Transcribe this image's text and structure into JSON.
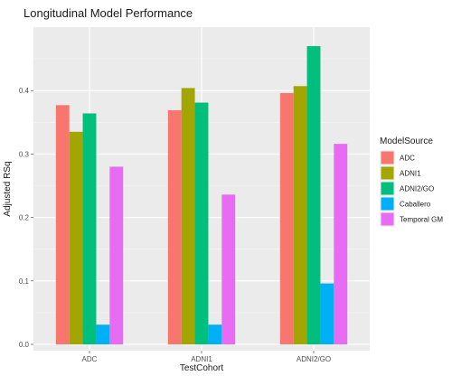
{
  "chart_data": {
    "type": "bar",
    "title": "Longitudinal Model Performance",
    "xlabel": "TestCohort",
    "ylabel": "Adjusted RSq",
    "categories": [
      "ADC",
      "ADNI1",
      "ADNI2/GO"
    ],
    "ylim": [
      -0.01,
      0.5
    ],
    "yticks": [
      0.0,
      0.1,
      0.2,
      0.3,
      0.4
    ],
    "ytick_labels": [
      "0.0",
      "0.1",
      "0.2",
      "0.3",
      "0.4"
    ],
    "grid": true,
    "legend_title": "ModelSource",
    "legend_position": "right",
    "series": [
      {
        "name": "ADC",
        "color": "#F8766D",
        "values": [
          0.377,
          0.369,
          0.396
        ]
      },
      {
        "name": "ADNI1",
        "color": "#A3A500",
        "values": [
          0.335,
          0.404,
          0.407
        ]
      },
      {
        "name": "ADNI2/GO",
        "color": "#00BF7D",
        "values": [
          0.364,
          0.381,
          0.47
        ]
      },
      {
        "name": "Caballero",
        "color": "#00B0F6",
        "values": [
          0.031,
          0.031,
          0.096
        ]
      },
      {
        "name": "Temporal GM",
        "color": "#E76BF3",
        "values": [
          0.28,
          0.236,
          0.316
        ]
      }
    ]
  }
}
